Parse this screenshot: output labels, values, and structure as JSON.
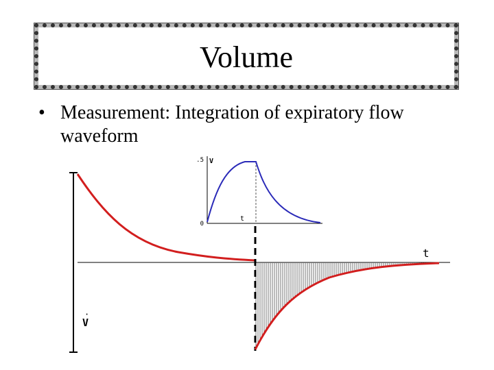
{
  "slide": {
    "title": "Volume",
    "bullets": [
      {
        "marker": "•",
        "text": "Measurement: Integration of expiratory flow waveform"
      }
    ]
  },
  "colors": {
    "flow_curve": "#d21e1e",
    "volume_curve": "#2a2ab8",
    "axis": "#000000",
    "shading": "#777777"
  },
  "inset_plot": {
    "y_label": "V",
    "y_max_label": ".5",
    "y_min_label": "0",
    "x_label": "t"
  },
  "main_plot": {
    "x_label": "t",
    "y_label": "V",
    "y_label_dot": "·"
  }
}
